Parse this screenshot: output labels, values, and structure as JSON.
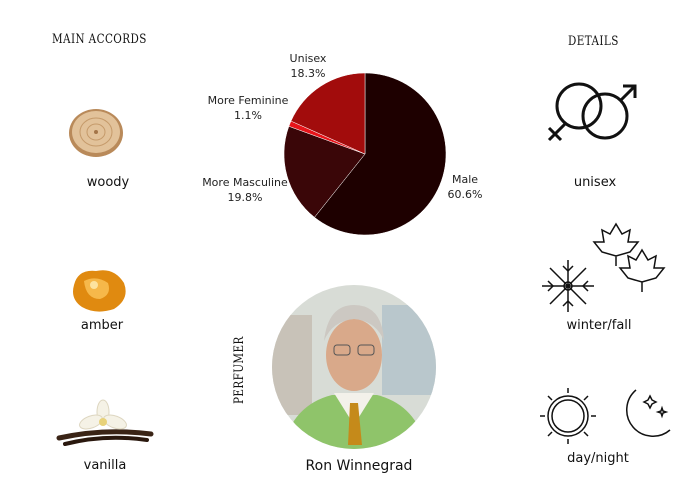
{
  "headers": {
    "main_accords": "MAIN ACCORDS",
    "details": "DETAILS",
    "perfumer": "PERFUMER"
  },
  "accords": [
    {
      "label": "woody",
      "icon": "wood-slice-icon"
    },
    {
      "label": "amber",
      "icon": "amber-resin-icon"
    },
    {
      "label": "vanilla",
      "icon": "vanilla-flower-icon"
    }
  ],
  "details": [
    {
      "label": "unisex",
      "icon": "gender-symbols-icon"
    },
    {
      "label": "winter/fall",
      "icon": "snowflake-leaves-icon"
    },
    {
      "label": "day/night",
      "icon": "sun-moon-icon"
    }
  ],
  "perfumer": {
    "name": "Ron Winnegrad"
  },
  "chart_data": {
    "type": "pie",
    "start": "top",
    "direction": "clockwise",
    "slices": [
      {
        "name": "Male",
        "value": 60.6,
        "label": "60.6%",
        "color": "#1e0000"
      },
      {
        "name": "More Masculine",
        "value": 19.8,
        "label": "19.8%",
        "color": "#3a0608"
      },
      {
        "name": "More Feminine",
        "value": 1.1,
        "label": "1.1%",
        "color": "#e8141a"
      },
      {
        "name": "Unisex",
        "value": 18.3,
        "label": "18.3%",
        "color": "#a20c0c"
      }
    ]
  }
}
